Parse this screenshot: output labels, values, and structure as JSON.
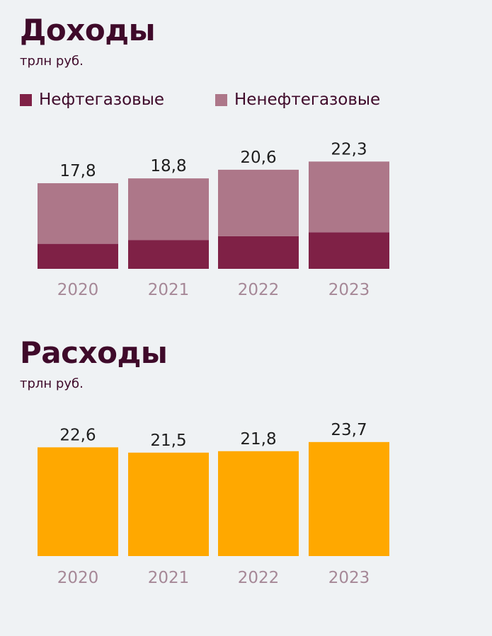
{
  "income": {
    "title": "Доходы",
    "unit": "трлн руб.",
    "legend": [
      "Нефтегазовые",
      "Ненефтегазовые"
    ]
  },
  "expenses": {
    "title": "Расходы",
    "unit": "трлн руб."
  },
  "colors": {
    "oil_gas": "#7f2146",
    "non_oil_gas": "#ad7789",
    "expenses": "#ffa800"
  },
  "chart_data": [
    {
      "type": "bar",
      "stacked": true,
      "title": "Доходы",
      "subtitle": "трлн руб.",
      "categories": [
        "2020",
        "2021",
        "2022",
        "2023"
      ],
      "series": [
        {
          "name": "Нефтегазовые",
          "values": [
            5.2,
            6.0,
            6.8,
            7.6
          ]
        },
        {
          "name": "Ненефтегазовые",
          "values": [
            12.6,
            12.8,
            13.8,
            14.7
          ]
        }
      ],
      "totals": [
        17.8,
        18.8,
        20.6,
        22.3
      ],
      "total_labels": [
        "17,8",
        "18,8",
        "20,6",
        "22,3"
      ],
      "ylim": [
        0,
        24
      ],
      "grid": false,
      "legend": "top-left"
    },
    {
      "type": "bar",
      "title": "Расходы",
      "subtitle": "трлн руб.",
      "categories": [
        "2020",
        "2021",
        "2022",
        "2023"
      ],
      "values": [
        22.6,
        21.5,
        21.8,
        23.7
      ],
      "value_labels": [
        "22,6",
        "21,5",
        "21,8",
        "23,7"
      ],
      "ylim": [
        0,
        24
      ],
      "grid": false
    }
  ]
}
